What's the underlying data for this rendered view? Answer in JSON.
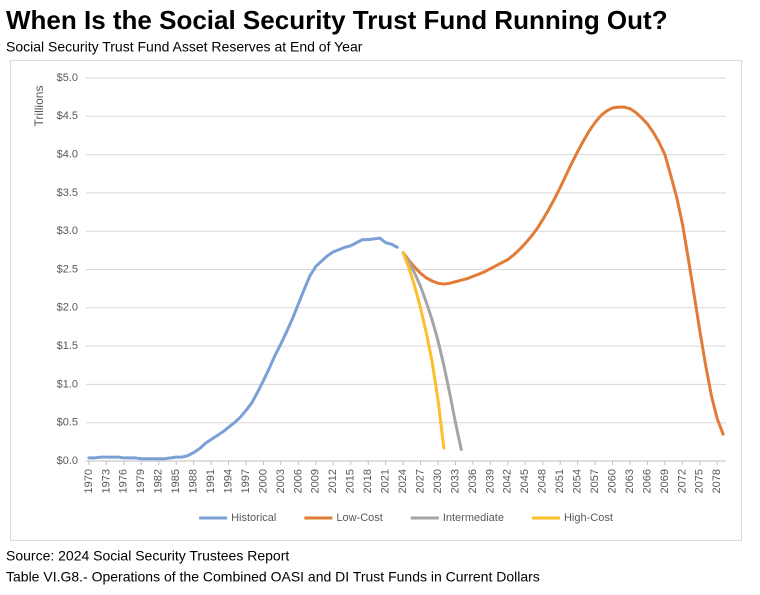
{
  "chart_data": {
    "type": "line",
    "title": "When Is the Social Security Trust Fund Running Out?",
    "subtitle": "Social Security Trust Fund Asset Reserves at End of Year",
    "y_label": "Trillions",
    "source": "Source: 2024 Social Security Trustees Report",
    "note": "Table VI.G8.- Operations of the Combined OASI and DI Trust Funds in Current Dollars",
    "xlim": [
      1969.5,
      2079.5
    ],
    "xticks": [
      1970,
      1973,
      1976,
      1979,
      1982,
      1985,
      1988,
      1991,
      1994,
      1997,
      2000,
      2003,
      2006,
      2009,
      2012,
      2015,
      2018,
      2021,
      2024,
      2027,
      2030,
      2033,
      2036,
      2039,
      2042,
      2045,
      2048,
      2051,
      2054,
      2057,
      2060,
      2063,
      2066,
      2069,
      2072,
      2075,
      2078
    ],
    "ylim": [
      0,
      5
    ],
    "yticks": [
      {
        "value": 0,
        "label": "$0.0"
      },
      {
        "value": 0.5,
        "label": "$0.5"
      },
      {
        "value": 1,
        "label": "$1.0"
      },
      {
        "value": 1.5,
        "label": "$1.5"
      },
      {
        "value": 2,
        "label": "$2.0"
      },
      {
        "value": 2.5,
        "label": "$2.5"
      },
      {
        "value": 3,
        "label": "$3.0"
      },
      {
        "value": 3.5,
        "label": "$3.5"
      },
      {
        "value": 4,
        "label": "$4.0"
      },
      {
        "value": 4.5,
        "label": "$4.5"
      },
      {
        "value": 5,
        "label": "$5.0"
      }
    ],
    "grid": true,
    "legend": "bottom",
    "series": [
      {
        "name": "Historical",
        "color": "#7aa0d6",
        "x": [
          1970,
          1971,
          1972,
          1973,
          1974,
          1975,
          1976,
          1977,
          1978,
          1979,
          1980,
          1981,
          1982,
          1983,
          1984,
          1985,
          1986,
          1987,
          1988,
          1989,
          1990,
          1991,
          1992,
          1993,
          1994,
          1995,
          1996,
          1997,
          1998,
          1999,
          2000,
          2001,
          2002,
          2003,
          2004,
          2005,
          2006,
          2007,
          2008,
          2009,
          2010,
          2011,
          2012,
          2013,
          2014,
          2015,
          2016,
          2017,
          2018,
          2019,
          2020,
          2021,
          2022,
          2023
        ],
        "values": [
          0.04,
          0.04,
          0.05,
          0.05,
          0.05,
          0.05,
          0.04,
          0.04,
          0.04,
          0.03,
          0.03,
          0.03,
          0.03,
          0.03,
          0.04,
          0.05,
          0.05,
          0.07,
          0.11,
          0.16,
          0.23,
          0.28,
          0.33,
          0.38,
          0.44,
          0.5,
          0.57,
          0.66,
          0.76,
          0.9,
          1.05,
          1.21,
          1.38,
          1.53,
          1.69,
          1.86,
          2.05,
          2.24,
          2.42,
          2.54,
          2.61,
          2.68,
          2.73,
          2.76,
          2.79,
          2.81,
          2.85,
          2.89,
          2.89,
          2.9,
          2.91,
          2.85,
          2.83,
          2.79
        ]
      },
      {
        "name": "Low-Cost",
        "color": "#e27b36",
        "x": [
          2024,
          2025,
          2026,
          2027,
          2028,
          2029,
          2030,
          2031,
          2032,
          2033,
          2034,
          2035,
          2036,
          2037,
          2038,
          2039,
          2040,
          2041,
          2042,
          2043,
          2044,
          2045,
          2046,
          2047,
          2048,
          2049,
          2050,
          2051,
          2052,
          2053,
          2054,
          2055,
          2056,
          2057,
          2058,
          2059,
          2060,
          2061,
          2062,
          2063,
          2064,
          2065,
          2066,
          2067,
          2068,
          2069,
          2070,
          2071,
          2072,
          2073,
          2074,
          2075,
          2076,
          2077,
          2078,
          2079
        ],
        "values": [
          2.72,
          2.62,
          2.53,
          2.45,
          2.39,
          2.35,
          2.32,
          2.31,
          2.32,
          2.34,
          2.36,
          2.38,
          2.41,
          2.44,
          2.47,
          2.51,
          2.55,
          2.59,
          2.63,
          2.69,
          2.76,
          2.84,
          2.93,
          3.03,
          3.15,
          3.28,
          3.42,
          3.57,
          3.73,
          3.89,
          4.04,
          4.18,
          4.31,
          4.42,
          4.51,
          4.57,
          4.61,
          4.62,
          4.62,
          4.6,
          4.55,
          4.48,
          4.4,
          4.29,
          4.16,
          4.0,
          3.73,
          3.45,
          3.1,
          2.65,
          2.18,
          1.7,
          1.25,
          0.85,
          0.55,
          0.35
        ]
      },
      {
        "name": "Intermediate",
        "color": "#a5a5a5",
        "x": [
          2024,
          2025,
          2026,
          2027,
          2028,
          2029,
          2030,
          2031,
          2032,
          2033,
          2034
        ],
        "values": [
          2.72,
          2.6,
          2.45,
          2.28,
          2.07,
          1.84,
          1.57,
          1.25,
          0.89,
          0.5,
          0.15
        ]
      },
      {
        "name": "High-Cost",
        "color": "#fbbf2a",
        "x": [
          2024,
          2025,
          2026,
          2027,
          2028,
          2029,
          2030,
          2031
        ],
        "values": [
          2.72,
          2.52,
          2.28,
          2.0,
          1.67,
          1.29,
          0.8,
          0.17
        ]
      }
    ]
  }
}
